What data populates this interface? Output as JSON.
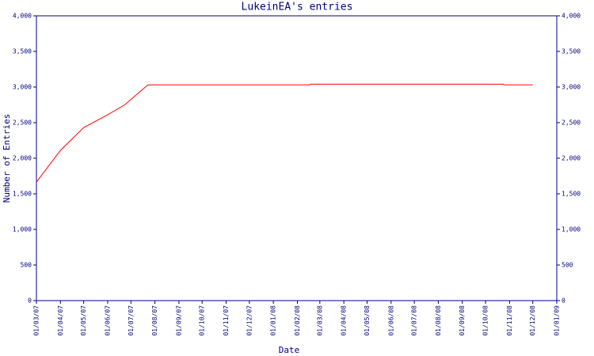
{
  "chart_data": {
    "type": "line",
    "title": "LukeinEA's entries",
    "x_label": "Date",
    "y_label": "Number of Entries",
    "x": [
      "2007-03-01",
      "2007-04-01",
      "2007-05-01",
      "2007-06-01",
      "2007-06-23",
      "2007-07-23",
      "2008-02-17",
      "2008-02-18",
      "2008-10-24",
      "2008-10-25",
      "2008-12-01"
    ],
    "series": [
      {
        "name": "Entries",
        "color": "#ff0000",
        "values": [
          1665,
          2110,
          2430,
          2610,
          2750,
          3030,
          3030,
          3040,
          3040,
          3030,
          3030
        ]
      }
    ],
    "xlim": [
      "2007-03-01",
      "2009-01-01"
    ],
    "xticks": [
      {
        "value": "2007-03-01",
        "label": "01/03/07"
      },
      {
        "value": "2007-04-01",
        "label": "01/04/07"
      },
      {
        "value": "2007-05-01",
        "label": "01/05/07"
      },
      {
        "value": "2007-06-01",
        "label": "01/06/07"
      },
      {
        "value": "2007-07-01",
        "label": "01/07/07"
      },
      {
        "value": "2007-08-01",
        "label": "01/08/07"
      },
      {
        "value": "2007-09-01",
        "label": "01/09/07"
      },
      {
        "value": "2007-10-01",
        "label": "01/10/07"
      },
      {
        "value": "2007-11-01",
        "label": "01/11/07"
      },
      {
        "value": "2007-12-01",
        "label": "01/12/07"
      },
      {
        "value": "2008-01-01",
        "label": "01/01/08"
      },
      {
        "value": "2008-02-01",
        "label": "01/02/08"
      },
      {
        "value": "2008-03-01",
        "label": "01/03/08"
      },
      {
        "value": "2008-04-01",
        "label": "01/04/08"
      },
      {
        "value": "2008-05-01",
        "label": "01/05/08"
      },
      {
        "value": "2008-06-01",
        "label": "01/06/08"
      },
      {
        "value": "2008-07-01",
        "label": "01/07/08"
      },
      {
        "value": "2008-08-01",
        "label": "01/08/08"
      },
      {
        "value": "2008-09-01",
        "label": "01/09/08"
      },
      {
        "value": "2008-10-01",
        "label": "01/10/08"
      },
      {
        "value": "2008-11-01",
        "label": "01/11/08"
      },
      {
        "value": "2008-12-01",
        "label": "01/12/08"
      },
      {
        "value": "2009-01-01",
        "label": "01/01/09"
      }
    ],
    "ylim": [
      0,
      4000
    ],
    "yticks": [
      0,
      500,
      {
        "value": 1000,
        "label": "1,000"
      },
      {
        "value": 1500,
        "label": "1,500"
      },
      {
        "value": 2000,
        "label": "2,000"
      },
      {
        "value": 2500,
        "label": "2,500"
      },
      {
        "value": 3000,
        "label": "3,000"
      },
      {
        "value": 3500,
        "label": "3,500"
      },
      {
        "value": 4000,
        "label": "4,000"
      }
    ],
    "mirror_y_axis": true,
    "grid": false
  }
}
